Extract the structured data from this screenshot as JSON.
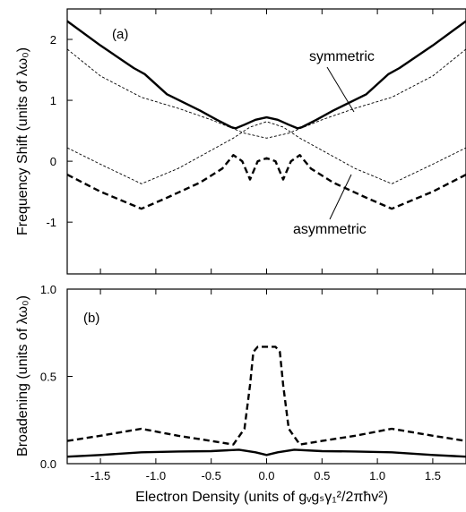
{
  "chart_data": [
    {
      "type": "line",
      "panel_label": "(a)",
      "ylabel": "Frequency Shift (units of λω₀)",
      "xlim": [
        -1.8,
        1.8
      ],
      "ylim": [
        -1.85,
        2.5
      ],
      "yticks": [
        -1,
        0,
        1,
        2
      ],
      "xticks": [
        -1.5,
        -1.0,
        -0.5,
        0.0,
        0.5,
        1.0,
        1.5
      ],
      "annotations": [
        "symmetric",
        "asymmetric"
      ],
      "series": [
        {
          "name": "symmetric",
          "style": "thick-solid",
          "x": [
            -1.8,
            -1.5,
            -1.2,
            -1.1,
            -0.9,
            -0.6,
            -0.45,
            -0.32,
            -0.28,
            -0.2,
            -0.1,
            0.0,
            0.1,
            0.2,
            0.28,
            0.32,
            0.45,
            0.6,
            0.9,
            1.1,
            1.2,
            1.5,
            1.8
          ],
          "y": [
            2.3,
            1.9,
            1.53,
            1.43,
            1.1,
            0.83,
            0.68,
            0.56,
            0.54,
            0.6,
            0.68,
            0.72,
            0.68,
            0.6,
            0.54,
            0.56,
            0.68,
            0.83,
            1.1,
            1.43,
            1.53,
            1.9,
            2.3
          ]
        },
        {
          "name": "asymmetric",
          "style": "thick-dashed",
          "x": [
            -1.8,
            -1.5,
            -1.13,
            -0.9,
            -0.6,
            -0.4,
            -0.3,
            -0.22,
            -0.15,
            -0.08,
            0.0,
            0.08,
            0.15,
            0.22,
            0.3,
            0.4,
            0.6,
            0.9,
            1.13,
            1.5,
            1.8
          ],
          "y": [
            -0.22,
            -0.5,
            -0.78,
            -0.6,
            -0.35,
            -0.12,
            0.1,
            0.0,
            -0.3,
            0.0,
            0.05,
            0.0,
            -0.3,
            0.0,
            0.1,
            -0.12,
            -0.35,
            -0.6,
            -0.78,
            -0.5,
            -0.22
          ]
        },
        {
          "name": "uncoupled-upper",
          "style": "thin-dashed",
          "x": [
            -1.8,
            -1.5,
            -1.13,
            -0.8,
            -0.5,
            -0.2,
            0.0,
            0.2,
            0.5,
            0.8,
            1.13,
            1.5,
            1.8
          ],
          "y": [
            1.84,
            1.4,
            1.05,
            0.87,
            0.68,
            0.46,
            0.38,
            0.46,
            0.68,
            0.87,
            1.05,
            1.4,
            1.84
          ]
        },
        {
          "name": "uncoupled-lower",
          "style": "thin-dashed",
          "x": [
            -1.8,
            -1.5,
            -1.13,
            -0.8,
            -0.5,
            -0.3,
            -0.15,
            0.0,
            0.15,
            0.3,
            0.5,
            0.8,
            1.13,
            1.5,
            1.8
          ],
          "y": [
            0.22,
            -0.05,
            -0.37,
            -0.12,
            0.18,
            0.38,
            0.56,
            0.65,
            0.56,
            0.38,
            0.18,
            -0.12,
            -0.37,
            -0.05,
            0.22
          ]
        }
      ]
    },
    {
      "type": "line",
      "panel_label": "(b)",
      "ylabel": "Broadening (units of λω₀)",
      "xlabel": "Electron Density (units of gᵥgₛγ₁²/2πħv²)",
      "xlim": [
        -1.8,
        1.8
      ],
      "ylim": [
        0.0,
        1.0
      ],
      "yticks": [
        0.0,
        0.5,
        1.0
      ],
      "xticks": [
        -1.5,
        -1.0,
        -0.5,
        0.0,
        0.5,
        1.0,
        1.5
      ],
      "series": [
        {
          "name": "asymmetric",
          "style": "thick-dashed",
          "x": [
            -1.8,
            -1.5,
            -1.13,
            -0.8,
            -0.5,
            -0.3,
            -0.2,
            -0.15,
            -0.12,
            -0.08,
            0.0,
            0.08,
            0.12,
            0.15,
            0.2,
            0.3,
            0.5,
            0.8,
            1.13,
            1.5,
            1.8
          ],
          "y": [
            0.13,
            0.16,
            0.2,
            0.16,
            0.13,
            0.11,
            0.2,
            0.45,
            0.64,
            0.67,
            0.67,
            0.67,
            0.64,
            0.45,
            0.2,
            0.11,
            0.13,
            0.16,
            0.2,
            0.16,
            0.13
          ]
        },
        {
          "name": "symmetric",
          "style": "thick-solid",
          "x": [
            -1.8,
            -1.5,
            -1.13,
            -0.8,
            -0.5,
            -0.25,
            -0.1,
            0.0,
            0.1,
            0.25,
            0.5,
            0.8,
            1.13,
            1.5,
            1.8
          ],
          "y": [
            0.04,
            0.05,
            0.065,
            0.07,
            0.072,
            0.08,
            0.065,
            0.05,
            0.065,
            0.08,
            0.072,
            0.07,
            0.065,
            0.05,
            0.04
          ]
        }
      ]
    }
  ]
}
